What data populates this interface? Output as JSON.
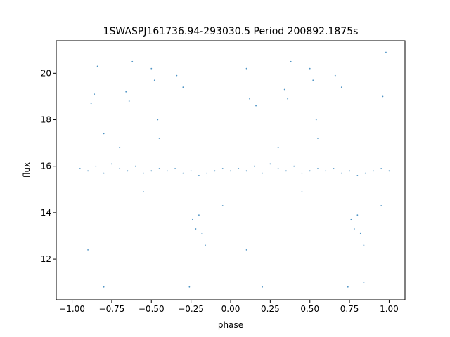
{
  "chart_data": {
    "type": "scatter",
    "title": "1SWASPJ161736.94-293030.5 Period 200892.1875s",
    "xlabel": "phase",
    "ylabel": "flux",
    "xlim": [
      -1.1,
      1.1
    ],
    "ylim": [
      10.25,
      21.4
    ],
    "xticks": [
      -1.0,
      -0.75,
      -0.5,
      -0.25,
      0.0,
      0.25,
      0.5,
      0.75,
      1.0
    ],
    "xtick_labels": [
      "−1.00",
      "−0.75",
      "−0.50",
      "−0.25",
      "0.00",
      "0.25",
      "0.50",
      "0.75",
      "1.00"
    ],
    "yticks": [
      12,
      14,
      16,
      18,
      20
    ],
    "ytick_labels": [
      "12",
      "14",
      "16",
      "18",
      "20"
    ],
    "grid": false,
    "legend": "none",
    "point_color": "#1f77b4",
    "series": [
      {
        "name": "",
        "points": [
          [
            -0.95,
            15.9
          ],
          [
            -0.9,
            15.8
          ],
          [
            -0.85,
            16.0
          ],
          [
            -0.8,
            15.7
          ],
          [
            -0.75,
            16.1
          ],
          [
            -0.7,
            15.9
          ],
          [
            -0.65,
            15.8
          ],
          [
            -0.6,
            16.0
          ],
          [
            -0.55,
            15.7
          ],
          [
            -0.5,
            15.8
          ],
          [
            -0.45,
            15.9
          ],
          [
            -0.4,
            15.8
          ],
          [
            -0.35,
            15.9
          ],
          [
            -0.3,
            15.7
          ],
          [
            -0.25,
            15.8
          ],
          [
            -0.2,
            15.6
          ],
          [
            -0.15,
            15.7
          ],
          [
            -0.1,
            15.8
          ],
          [
            -0.05,
            15.9
          ],
          [
            0.0,
            15.8
          ],
          [
            0.05,
            15.9
          ],
          [
            0.1,
            15.8
          ],
          [
            0.15,
            16.0
          ],
          [
            0.2,
            15.7
          ],
          [
            0.25,
            16.1
          ],
          [
            0.3,
            15.9
          ],
          [
            0.35,
            15.8
          ],
          [
            0.4,
            16.0
          ],
          [
            0.45,
            15.7
          ],
          [
            0.5,
            15.8
          ],
          [
            0.55,
            15.9
          ],
          [
            0.6,
            15.8
          ],
          [
            0.65,
            15.9
          ],
          [
            0.7,
            15.7
          ],
          [
            0.75,
            15.8
          ],
          [
            0.8,
            15.6
          ],
          [
            0.85,
            15.7
          ],
          [
            0.9,
            15.8
          ],
          [
            0.95,
            15.9
          ],
          [
            1.0,
            15.8
          ],
          [
            -0.88,
            18.7
          ],
          [
            -0.86,
            19.1
          ],
          [
            -0.84,
            20.3
          ],
          [
            -0.8,
            17.4
          ],
          [
            -0.66,
            19.2
          ],
          [
            -0.64,
            18.8
          ],
          [
            -0.62,
            20.5
          ],
          [
            -0.5,
            20.2
          ],
          [
            -0.48,
            19.7
          ],
          [
            -0.46,
            18.0
          ],
          [
            -0.34,
            19.9
          ],
          [
            -0.3,
            19.4
          ],
          [
            0.12,
            18.9
          ],
          [
            0.16,
            18.6
          ],
          [
            0.1,
            20.2
          ],
          [
            0.34,
            19.3
          ],
          [
            0.36,
            18.9
          ],
          [
            0.38,
            20.5
          ],
          [
            0.5,
            20.2
          ],
          [
            0.52,
            19.7
          ],
          [
            0.54,
            18.0
          ],
          [
            0.66,
            19.9
          ],
          [
            0.7,
            19.4
          ],
          [
            0.96,
            19.0
          ],
          [
            0.98,
            20.9
          ],
          [
            -0.24,
            13.7
          ],
          [
            -0.22,
            13.3
          ],
          [
            -0.2,
            13.9
          ],
          [
            -0.18,
            13.1
          ],
          [
            -0.16,
            12.6
          ],
          [
            0.76,
            13.7
          ],
          [
            0.78,
            13.3
          ],
          [
            0.8,
            13.9
          ],
          [
            0.82,
            13.1
          ],
          [
            0.84,
            12.6
          ],
          [
            -0.8,
            10.8
          ],
          [
            0.2,
            10.8
          ],
          [
            -0.26,
            10.8
          ],
          [
            0.74,
            10.8
          ],
          [
            0.84,
            11.0
          ],
          [
            -0.9,
            12.4
          ],
          [
            0.1,
            12.4
          ],
          [
            -0.55,
            14.9
          ],
          [
            0.45,
            14.9
          ],
          [
            -0.05,
            14.3
          ],
          [
            0.95,
            14.3
          ],
          [
            -0.45,
            17.2
          ],
          [
            0.55,
            17.2
          ],
          [
            -0.7,
            16.8
          ],
          [
            0.3,
            16.8
          ]
        ]
      }
    ]
  }
}
